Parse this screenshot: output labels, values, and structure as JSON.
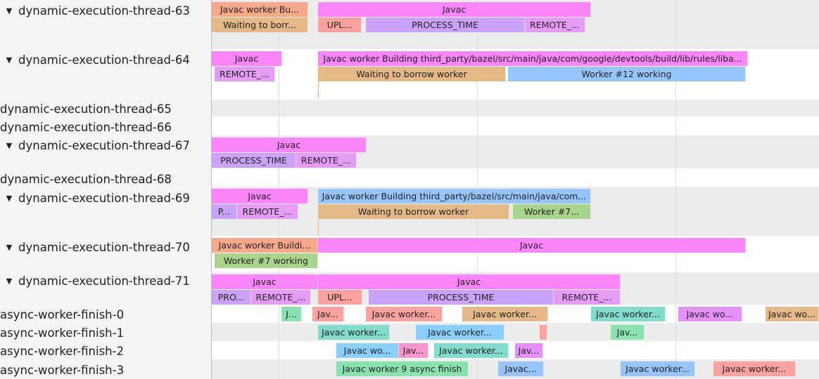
{
  "colors": {
    "pink": "#fb86fb",
    "salmon": "#f6a98a",
    "tan": "#e4b887",
    "upl": "#fba19e",
    "purple": "#cba2fa",
    "remote": "#e59cf6",
    "blue": "#96c4fc",
    "green": "#a9d48c",
    "teal": "#82dccb",
    "lightblue": "#88cffd",
    "green2": "#8ae2b1",
    "violet": "#e691f9",
    "hotpink": "#fd95cd"
  },
  "tracks": [
    {
      "name": "dynamic-execution-thread-63",
      "expanded": true,
      "slices": [
        {
          "label": "Javac worker Bu...",
          "color": "salmon"
        },
        {
          "label": "Javac",
          "color": "pink"
        },
        {
          "label": "Waiting to borr...",
          "color": "tan"
        },
        {
          "label": "UPL...",
          "color": "upl"
        },
        {
          "label": "PROCESS_TIME",
          "color": "purple"
        },
        {
          "label": "REMOTE_...",
          "color": "remote"
        }
      ]
    },
    {
      "name": "dynamic-execution-thread-64",
      "expanded": true,
      "slices": [
        {
          "label": "Javac",
          "color": "pink"
        },
        {
          "label": "Javac worker Building third_party/bazel/src/main/java/com/google/devtools/build/lib/rules/liba...",
          "color": "pink"
        },
        {
          "label": "REMOTE_...",
          "color": "remote"
        },
        {
          "label": "Waiting to borrow worker",
          "color": "tan"
        },
        {
          "label": "Worker #12 working",
          "color": "blue"
        }
      ]
    },
    {
      "name": "dynamic-execution-thread-65",
      "expanded": false,
      "slices": []
    },
    {
      "name": "dynamic-execution-thread-66",
      "expanded": false,
      "slices": []
    },
    {
      "name": "dynamic-execution-thread-67",
      "expanded": true,
      "slices": [
        {
          "label": "Javac",
          "color": "pink"
        },
        {
          "label": "PROCESS_TIME",
          "color": "purple"
        },
        {
          "label": "REMOTE_...",
          "color": "remote"
        }
      ]
    },
    {
      "name": "dynamic-execution-thread-68",
      "expanded": false,
      "slices": []
    },
    {
      "name": "dynamic-execution-thread-69",
      "expanded": true,
      "slices": [
        {
          "label": "Javac",
          "color": "pink"
        },
        {
          "label": "Javac worker Building third_party/bazel/src/main/java/com...",
          "color": "blue"
        },
        {
          "label": "P...",
          "color": "purple"
        },
        {
          "label": "REMOTE_...",
          "color": "remote"
        },
        {
          "label": "Waiting to borrow worker",
          "color": "tan"
        },
        {
          "label": "Worker #7...",
          "color": "green"
        }
      ]
    },
    {
      "name": "dynamic-execution-thread-70",
      "expanded": true,
      "slices": [
        {
          "label": "Javac worker Buildi...",
          "color": "salmon"
        },
        {
          "label": "Javac",
          "color": "pink"
        },
        {
          "label": "Worker #7 working",
          "color": "green"
        }
      ]
    },
    {
      "name": "dynamic-execution-thread-71",
      "expanded": true,
      "slices": [
        {
          "label": "Javac",
          "color": "pink"
        },
        {
          "label": "Javac",
          "color": "pink"
        },
        {
          "label": "PRO...",
          "color": "purple"
        },
        {
          "label": "REMOTE_...",
          "color": "remote"
        },
        {
          "label": "UPL...",
          "color": "upl"
        },
        {
          "label": "PROCESS_TIME",
          "color": "purple"
        },
        {
          "label": "REMOTE_...",
          "color": "remote"
        }
      ]
    },
    {
      "name": "async-worker-finish-0",
      "expanded": false,
      "slices": [
        {
          "label": "J...",
          "color": "green2"
        },
        {
          "label": "Jav...",
          "color": "upl"
        },
        {
          "label": "Javac worker...",
          "color": "upl"
        },
        {
          "label": "Javac worker...",
          "color": "tan"
        },
        {
          "label": "Javac worker...",
          "color": "teal"
        },
        {
          "label": "Javac wo...",
          "color": "violet"
        },
        {
          "label": "Javac wo...",
          "color": "tan"
        }
      ]
    },
    {
      "name": "async-worker-finish-1",
      "expanded": false,
      "slices": [
        {
          "label": "Javac worker...",
          "color": "teal"
        },
        {
          "label": "Javac worker...",
          "color": "lightblue"
        },
        {
          "label": "",
          "color": "upl"
        },
        {
          "label": "Jav...",
          "color": "green2"
        }
      ]
    },
    {
      "name": "async-worker-finish-2",
      "expanded": false,
      "slices": [
        {
          "label": "Javac wo...",
          "color": "lightblue"
        },
        {
          "label": "Jav...",
          "color": "hotpink"
        },
        {
          "label": "Javac worker...",
          "color": "teal"
        },
        {
          "label": "Jav...",
          "color": "violet"
        }
      ]
    },
    {
      "name": "async-worker-finish-3",
      "expanded": false,
      "slices": [
        {
          "label": "Javac worker 9 async finish",
          "color": "green2"
        },
        {
          "label": "Javac...",
          "color": "blue"
        },
        {
          "label": "Javac worker...",
          "color": "blue"
        },
        {
          "label": "Javac worker...",
          "color": "upl"
        }
      ]
    }
  ]
}
